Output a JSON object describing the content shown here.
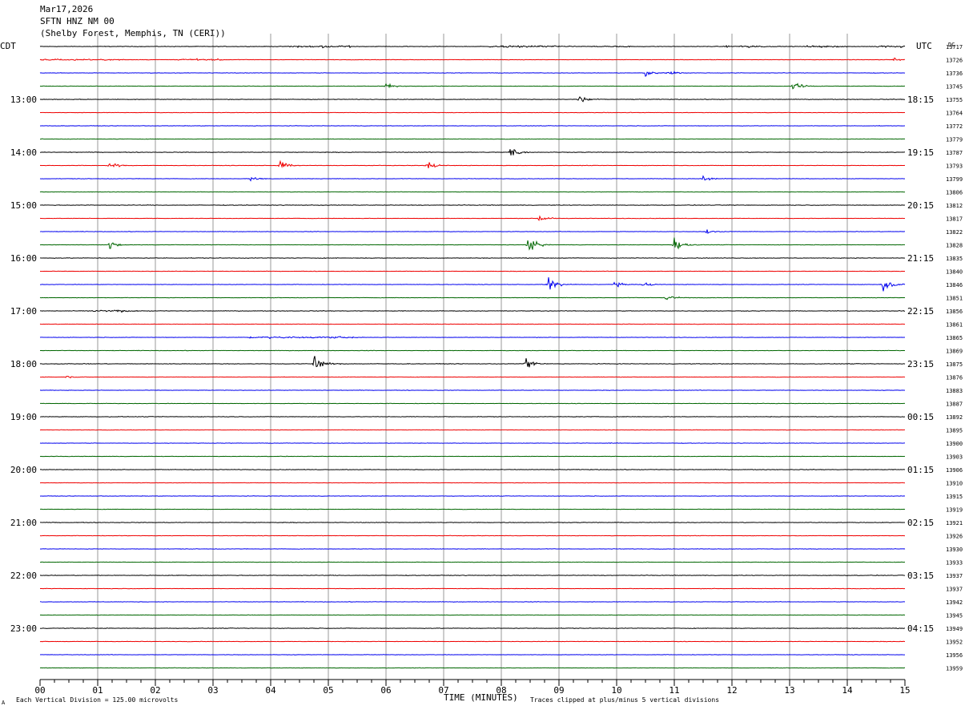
{
  "header": {
    "line1": "Mar17,2026",
    "line2": "SFTN HNZ NM 00",
    "line3": "(Shelby Forest, Memphis, TN (CERI))"
  },
  "left_axis_label": "CDT",
  "right_axis_label": "UTC",
  "counts_header": "DC",
  "footer": {
    "xlabel": "TIME (MINUTES)",
    "scale_note": "Each Vertical Division =  125.00 microvolts",
    "clip_note": "Traces clipped at plus/minus 5 vertical divisions",
    "corner_mark": "A"
  },
  "chart_data": {
    "type": "line",
    "title": "SFTN HNZ NM 00",
    "xlabel": "TIME (MINUTES)",
    "ylabel": "",
    "xlim": [
      0,
      15
    ],
    "x_ticks": [
      "00",
      "01",
      "02",
      "03",
      "04",
      "05",
      "06",
      "07",
      "08",
      "09",
      "10",
      "11",
      "12",
      "13",
      "14",
      "15"
    ],
    "trace_count": 48,
    "trace_minutes": 15,
    "colors_cycle": [
      "#000000",
      "#ee0000",
      "#0000ee",
      "#006600"
    ],
    "left_time_labels": [
      {
        "trace": 4,
        "label": "13:00"
      },
      {
        "trace": 8,
        "label": "14:00"
      },
      {
        "trace": 12,
        "label": "15:00"
      },
      {
        "trace": 16,
        "label": "16:00"
      },
      {
        "trace": 20,
        "label": "17:00"
      },
      {
        "trace": 24,
        "label": "18:00"
      },
      {
        "trace": 28,
        "label": "19:00"
      },
      {
        "trace": 32,
        "label": "20:00"
      },
      {
        "trace": 36,
        "label": "21:00"
      },
      {
        "trace": 40,
        "label": "22:00"
      },
      {
        "trace": 44,
        "label": "23:00"
      }
    ],
    "right_time_labels": [
      {
        "trace": 4,
        "label": "18:15"
      },
      {
        "trace": 8,
        "label": "19:15"
      },
      {
        "trace": 12,
        "label": "20:15"
      },
      {
        "trace": 16,
        "label": "21:15"
      },
      {
        "trace": 20,
        "label": "22:15"
      },
      {
        "trace": 24,
        "label": "23:15"
      },
      {
        "trace": 28,
        "label": "00:15"
      },
      {
        "trace": 32,
        "label": "01:15"
      },
      {
        "trace": 36,
        "label": "02:15"
      },
      {
        "trace": 40,
        "label": "03:15"
      },
      {
        "trace": 44,
        "label": "04:15"
      }
    ],
    "trace_dc_values": [
      "13717",
      "13726",
      "13736",
      "13745",
      "13755",
      "13764",
      "13772",
      "13779",
      "13787",
      "13793",
      "13799",
      "13806",
      "13812",
      "13817",
      "13822",
      "13828",
      "13835",
      "13840",
      "13846",
      "13851",
      "13856",
      "13861",
      "13865",
      "13869",
      "13875",
      "13876",
      "13883",
      "13887",
      "13892",
      "13895",
      "13900",
      "13903",
      "13906",
      "13910",
      "13915",
      "13919",
      "13921",
      "13926",
      "13930",
      "13933",
      "13937",
      "13937",
      "13942",
      "13945",
      "13949",
      "13952",
      "13956",
      "13959"
    ],
    "noisy_trace_segments": [
      {
        "trace": 0,
        "x0": 4.3,
        "x1": 5.4,
        "amp": 0.8
      },
      {
        "trace": 0,
        "x0": 7.8,
        "x1": 9.2,
        "amp": 0.8
      },
      {
        "trace": 0,
        "x0": 9.6,
        "x1": 10.3,
        "amp": 0.5
      },
      {
        "trace": 0,
        "x0": 11.9,
        "x1": 12.6,
        "amp": 0.8
      },
      {
        "trace": 0,
        "x0": 13.3,
        "x1": 14.0,
        "amp": 0.6
      },
      {
        "trace": 0,
        "x0": 14.5,
        "x1": 15.0,
        "amp": 0.7
      },
      {
        "trace": 1,
        "x0": 0.0,
        "x1": 1.5,
        "amp": 0.6
      },
      {
        "trace": 1,
        "x0": 2.4,
        "x1": 3.2,
        "amp": 0.6
      },
      {
        "trace": 20,
        "x0": 0.9,
        "x1": 1.7,
        "amp": 0.7
      },
      {
        "trace": 22,
        "x0": 3.6,
        "x1": 5.5,
        "amp": 0.7
      }
    ],
    "events": [
      {
        "trace": 1,
        "minute": 14.8,
        "amp": 1.2
      },
      {
        "trace": 2,
        "minute": 10.5,
        "amp": 2.5
      },
      {
        "trace": 2,
        "minute": 10.9,
        "amp": 1.5
      },
      {
        "trace": 3,
        "minute": 6.0,
        "amp": 1.8
      },
      {
        "trace": 3,
        "minute": 13.05,
        "amp": 3.2
      },
      {
        "trace": 4,
        "minute": 9.35,
        "amp": 3.0
      },
      {
        "trace": 5,
        "minute": 10.2,
        "amp": 0.3
      },
      {
        "trace": 8,
        "minute": 8.15,
        "amp": 3.2
      },
      {
        "trace": 9,
        "minute": 1.2,
        "amp": 2.0
      },
      {
        "trace": 9,
        "minute": 4.15,
        "amp": 2.8
      },
      {
        "trace": 9,
        "minute": 6.7,
        "amp": 3.0
      },
      {
        "trace": 10,
        "minute": 3.65,
        "amp": 1.5
      },
      {
        "trace": 10,
        "minute": 11.5,
        "amp": 2.3
      },
      {
        "trace": 13,
        "minute": 8.65,
        "amp": 2.5
      },
      {
        "trace": 14,
        "minute": 11.55,
        "amp": 1.5
      },
      {
        "trace": 15,
        "minute": 1.2,
        "amp": 2.2
      },
      {
        "trace": 15,
        "minute": 8.45,
        "amp": 5.0
      },
      {
        "trace": 15,
        "minute": 11.0,
        "amp": 5.0
      },
      {
        "trace": 18,
        "minute": 8.8,
        "amp": 5.0
      },
      {
        "trace": 18,
        "minute": 9.95,
        "amp": 1.6
      },
      {
        "trace": 18,
        "minute": 10.45,
        "amp": 1.8
      },
      {
        "trace": 18,
        "minute": 14.6,
        "amp": 5.0
      },
      {
        "trace": 19,
        "minute": 10.85,
        "amp": 2.0
      },
      {
        "trace": 24,
        "minute": 4.75,
        "amp": 5.0
      },
      {
        "trace": 24,
        "minute": 8.4,
        "amp": 3.5
      },
      {
        "trace": 25,
        "minute": 0.45,
        "amp": 0.8
      },
      {
        "trace": 30,
        "minute": 9.85,
        "amp": 0.4
      }
    ]
  }
}
